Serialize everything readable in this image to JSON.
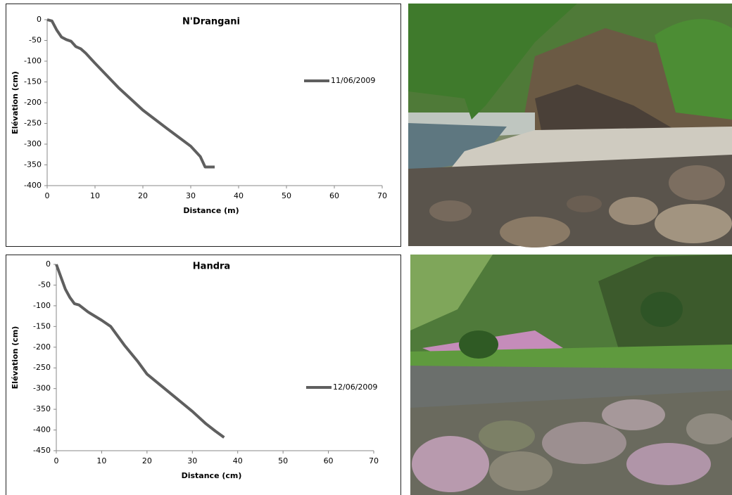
{
  "chart_data": [
    {
      "type": "line",
      "title": "N'Drangani",
      "x_label": "Distance (m)",
      "y_label": "Elévation (cm)",
      "x": [
        0,
        1,
        2,
        3,
        4,
        5,
        6,
        7,
        8,
        10,
        15,
        20,
        25,
        30,
        32,
        33,
        35
      ],
      "series": [
        {
          "name": "11/06/2009",
          "color": "#5f5f5f",
          "values": [
            0,
            -3,
            -25,
            -42,
            -48,
            -52,
            -65,
            -70,
            -80,
            -105,
            -165,
            -218,
            -262,
            -305,
            -330,
            -355,
            -355
          ]
        }
      ],
      "xlim": [
        0,
        70
      ],
      "xticks": [
        0,
        10,
        20,
        30,
        40,
        50,
        60,
        70
      ],
      "ylim": [
        -400,
        0
      ],
      "yticks": [
        -400,
        -350,
        -300,
        -250,
        -200,
        -150,
        -100,
        -50,
        0
      ]
    },
    {
      "type": "line",
      "title": "Handra",
      "x_label": "Distance (cm)",
      "y_label": "Elévation (cm)",
      "x": [
        0,
        1,
        2,
        3,
        4,
        5,
        7,
        10,
        12,
        13,
        15,
        18,
        20,
        25,
        30,
        33,
        35,
        37
      ],
      "series": [
        {
          "name": "12/06/2009",
          "color": "#5f5f5f",
          "values": [
            0,
            -30,
            -60,
            -80,
            -95,
            -98,
            -115,
            -135,
            -150,
            -165,
            -195,
            -235,
            -265,
            -310,
            -355,
            -385,
            -402,
            -418
          ]
        }
      ],
      "xlim": [
        0,
        70
      ],
      "xticks": [
        0,
        10,
        20,
        30,
        40,
        50,
        60,
        70
      ],
      "ylim": [
        -450,
        0
      ],
      "yticks": [
        -450,
        -400,
        -350,
        -300,
        -250,
        -200,
        -150,
        -100,
        -50,
        0
      ]
    }
  ]
}
